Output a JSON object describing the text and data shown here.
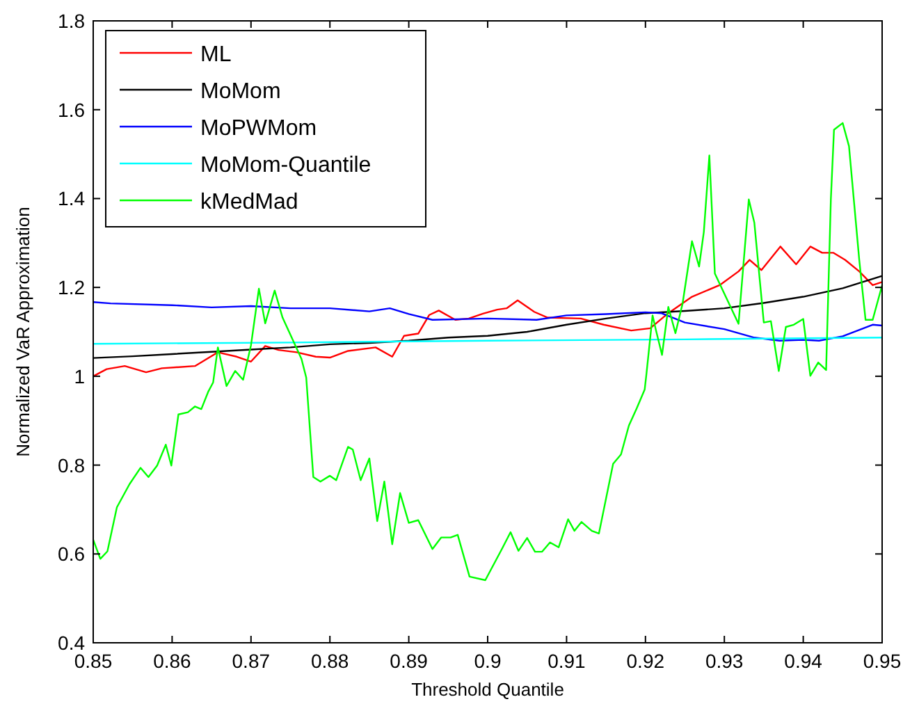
{
  "chart_data": {
    "type": "line",
    "xlabel": "Threshold Quantile",
    "ylabel": "Normalized VaR Approximation",
    "xlim": [
      0.85,
      0.95
    ],
    "ylim": [
      0.4,
      1.8
    ],
    "xticks": [
      0.85,
      0.86,
      0.87,
      0.88,
      0.89,
      0.9,
      0.91,
      0.92,
      0.93,
      0.94,
      0.95
    ],
    "yticks": [
      0.4,
      0.6,
      0.8,
      1,
      1.2,
      1.4,
      1.6,
      1.8
    ],
    "grid": false,
    "legend": "top left",
    "line_style": "solid",
    "marker": "none",
    "series": [
      {
        "name": "ML",
        "color": "#ff0000",
        "x": [
          0.85,
          0.8517,
          0.854,
          0.8567,
          0.8587,
          0.8629,
          0.8658,
          0.8682,
          0.87,
          0.8718,
          0.8735,
          0.8758,
          0.8782,
          0.88,
          0.8823,
          0.8858,
          0.8879,
          0.8894,
          0.8912,
          0.8926,
          0.8938,
          0.8959,
          0.8976,
          0.8994,
          0.9012,
          0.9024,
          0.9038,
          0.9059,
          0.9076,
          0.9118,
          0.9147,
          0.9182,
          0.9206,
          0.9229,
          0.9259,
          0.9294,
          0.9318,
          0.9332,
          0.9347,
          0.9371,
          0.9391,
          0.9409,
          0.9424,
          0.9438,
          0.9453,
          0.9471,
          0.9488,
          0.95
        ],
        "values": [
          1.0,
          1.016,
          1.023,
          1.009,
          1.018,
          1.023,
          1.054,
          1.044,
          1.033,
          1.068,
          1.059,
          1.054,
          1.044,
          1.042,
          1.057,
          1.065,
          1.044,
          1.091,
          1.096,
          1.138,
          1.148,
          1.127,
          1.13,
          1.141,
          1.15,
          1.153,
          1.171,
          1.145,
          1.132,
          1.13,
          1.116,
          1.103,
          1.108,
          1.142,
          1.179,
          1.205,
          1.236,
          1.262,
          1.239,
          1.292,
          1.252,
          1.292,
          1.278,
          1.278,
          1.262,
          1.236,
          1.205,
          1.212
        ]
      },
      {
        "name": "MoMom",
        "color": "#000000",
        "x": [
          0.85,
          0.855,
          0.86,
          0.865,
          0.87,
          0.875,
          0.88,
          0.885,
          0.89,
          0.895,
          0.9,
          0.905,
          0.91,
          0.915,
          0.92,
          0.925,
          0.93,
          0.935,
          0.94,
          0.945,
          0.95
        ],
        "values": [
          1.041,
          1.045,
          1.05,
          1.055,
          1.06,
          1.065,
          1.072,
          1.075,
          1.08,
          1.087,
          1.091,
          1.1,
          1.116,
          1.13,
          1.142,
          1.147,
          1.153,
          1.165,
          1.179,
          1.198,
          1.226
        ]
      },
      {
        "name": "MoPWMom",
        "color": "#0000ff",
        "x": [
          0.85,
          0.8522,
          0.86,
          0.865,
          0.87,
          0.875,
          0.88,
          0.885,
          0.8876,
          0.89,
          0.893,
          0.9,
          0.9062,
          0.91,
          0.915,
          0.92,
          0.922,
          0.925,
          0.93,
          0.9338,
          0.937,
          0.94,
          0.942,
          0.945,
          0.9488,
          0.95
        ],
        "values": [
          1.167,
          1.164,
          1.16,
          1.155,
          1.158,
          1.153,
          1.153,
          1.146,
          1.153,
          1.14,
          1.127,
          1.13,
          1.127,
          1.137,
          1.14,
          1.144,
          1.142,
          1.121,
          1.106,
          1.087,
          1.08,
          1.082,
          1.08,
          1.09,
          1.116,
          1.114
        ]
      },
      {
        "name": "MoMom-Quantile",
        "color": "#00ffff",
        "x": [
          0.85,
          0.875,
          0.9,
          0.925,
          0.95
        ],
        "values": [
          1.073,
          1.076,
          1.08,
          1.083,
          1.087
        ]
      },
      {
        "name": "kMedMad",
        "color": "#00ff00",
        "x": [
          0.85,
          0.8509,
          0.8518,
          0.853,
          0.8546,
          0.856,
          0.857,
          0.8581,
          0.8592,
          0.8599,
          0.8608,
          0.862,
          0.8629,
          0.8637,
          0.8646,
          0.8652,
          0.8658,
          0.8669,
          0.868,
          0.869,
          0.87,
          0.871,
          0.8718,
          0.873,
          0.874,
          0.8764,
          0.877,
          0.8779,
          0.8788,
          0.88,
          0.8808,
          0.8823,
          0.8829,
          0.8839,
          0.885,
          0.886,
          0.8869,
          0.8879,
          0.8889,
          0.89,
          0.8912,
          0.893,
          0.8941,
          0.8953,
          0.8962,
          0.8977,
          0.8997,
          0.9018,
          0.9029,
          0.9039,
          0.905,
          0.906,
          0.9069,
          0.9079,
          0.909,
          0.9102,
          0.911,
          0.9119,
          0.9132,
          0.9141,
          0.9159,
          0.9169,
          0.9179,
          0.9189,
          0.9199,
          0.9201,
          0.9209,
          0.9213,
          0.9221,
          0.9229,
          0.9238,
          0.9247,
          0.9259,
          0.9268,
          0.9274,
          0.9281,
          0.9288,
          0.9318,
          0.9331,
          0.9338,
          0.935,
          0.9359,
          0.9369,
          0.9378,
          0.9388,
          0.94,
          0.9409,
          0.9419,
          0.9429,
          0.9435,
          0.9439,
          0.945,
          0.9458,
          0.9471,
          0.9479,
          0.9488,
          0.95
        ],
        "values": [
          0.632,
          0.589,
          0.606,
          0.705,
          0.757,
          0.794,
          0.773,
          0.799,
          0.846,
          0.799,
          0.914,
          0.919,
          0.932,
          0.926,
          0.966,
          0.986,
          1.065,
          0.978,
          1.012,
          0.992,
          1.07,
          1.197,
          1.119,
          1.193,
          1.132,
          1.039,
          0.997,
          0.773,
          0.763,
          0.776,
          0.766,
          0.841,
          0.835,
          0.766,
          0.815,
          0.674,
          0.763,
          0.622,
          0.737,
          0.67,
          0.676,
          0.611,
          0.637,
          0.637,
          0.643,
          0.549,
          0.541,
          0.611,
          0.649,
          0.607,
          0.636,
          0.605,
          0.605,
          0.626,
          0.615,
          0.678,
          0.652,
          0.672,
          0.652,
          0.646,
          0.803,
          0.824,
          0.889,
          0.928,
          0.97,
          1.001,
          1.137,
          1.106,
          1.048,
          1.156,
          1.097,
          1.163,
          1.304,
          1.247,
          1.325,
          1.497,
          1.231,
          1.118,
          1.398,
          1.346,
          1.121,
          1.124,
          1.012,
          1.111,
          1.116,
          1.129,
          1.001,
          1.031,
          1.014,
          1.398,
          1.555,
          1.57,
          1.518,
          1.262,
          1.127,
          1.127,
          1.205
        ]
      }
    ]
  }
}
